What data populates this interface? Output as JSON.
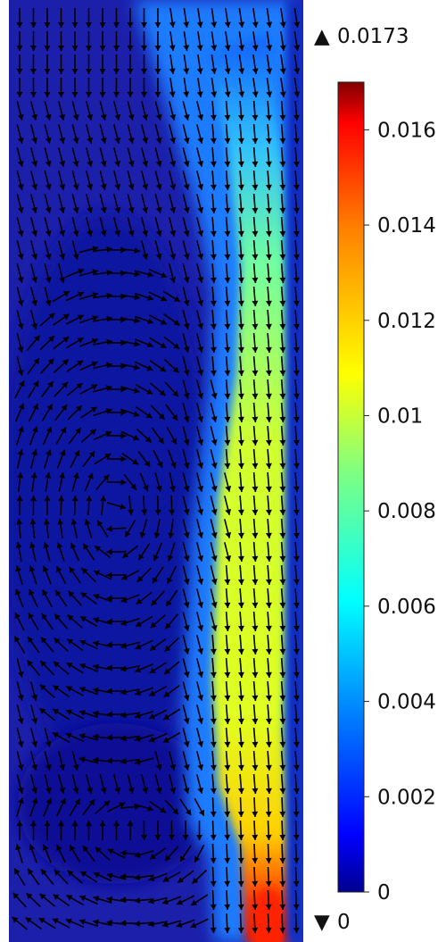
{
  "chart_data": {
    "type": "heatmap",
    "title": "",
    "xlabel": "",
    "ylabel": "",
    "colorbar": {
      "min": 0,
      "max": 0.017,
      "ticks": [
        0.016,
        0.014,
        0.012,
        0.01,
        0.008,
        0.006,
        0.004,
        0.002,
        0
      ],
      "tick_labels": [
        "0.016",
        "0.014",
        "0.012",
        "0.01",
        "0.008",
        "0.006",
        "0.004",
        "0.002",
        "0"
      ],
      "colormap": "rainbow",
      "colors": [
        "#00008f",
        "#0000ff",
        "#0080ff",
        "#00ffff",
        "#80ff80",
        "#ffff00",
        "#ff8000",
        "#ff0000",
        "#800000"
      ]
    },
    "range_max": {
      "marker": "▲",
      "value": "0.0173"
    },
    "range_min": {
      "marker": "▼",
      "value": "0"
    },
    "arrow_color": "#000000",
    "background_color": "#1a1aa6"
  }
}
